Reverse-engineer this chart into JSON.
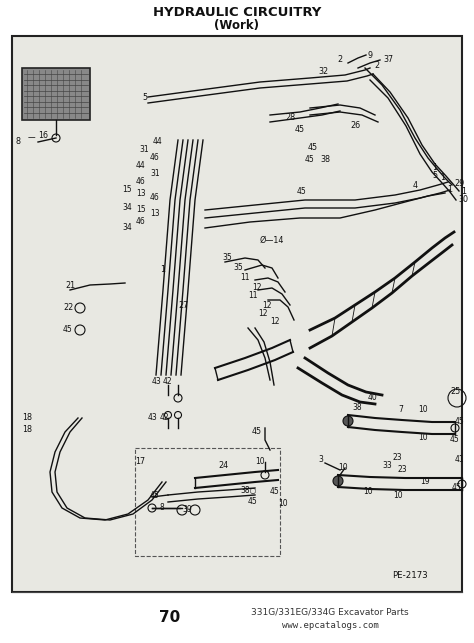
{
  "title_line1": "HYDRAULIC CIRCUITRY",
  "title_line2": "(Work)",
  "page_number": "70",
  "footer_right_line1": "331G/331EG/334G Excavator Parts",
  "footer_right_line2": "www.epcatalogs.com",
  "diagram_label": "PE-2173",
  "bg_color": "#ffffff",
  "border_color": "#000000",
  "diagram_bg": "#e8e8e2",
  "title_fontsize": 9.5,
  "subtitle_fontsize": 8.5,
  "footer_fontsize": 6.5,
  "page_num_fontsize": 11
}
